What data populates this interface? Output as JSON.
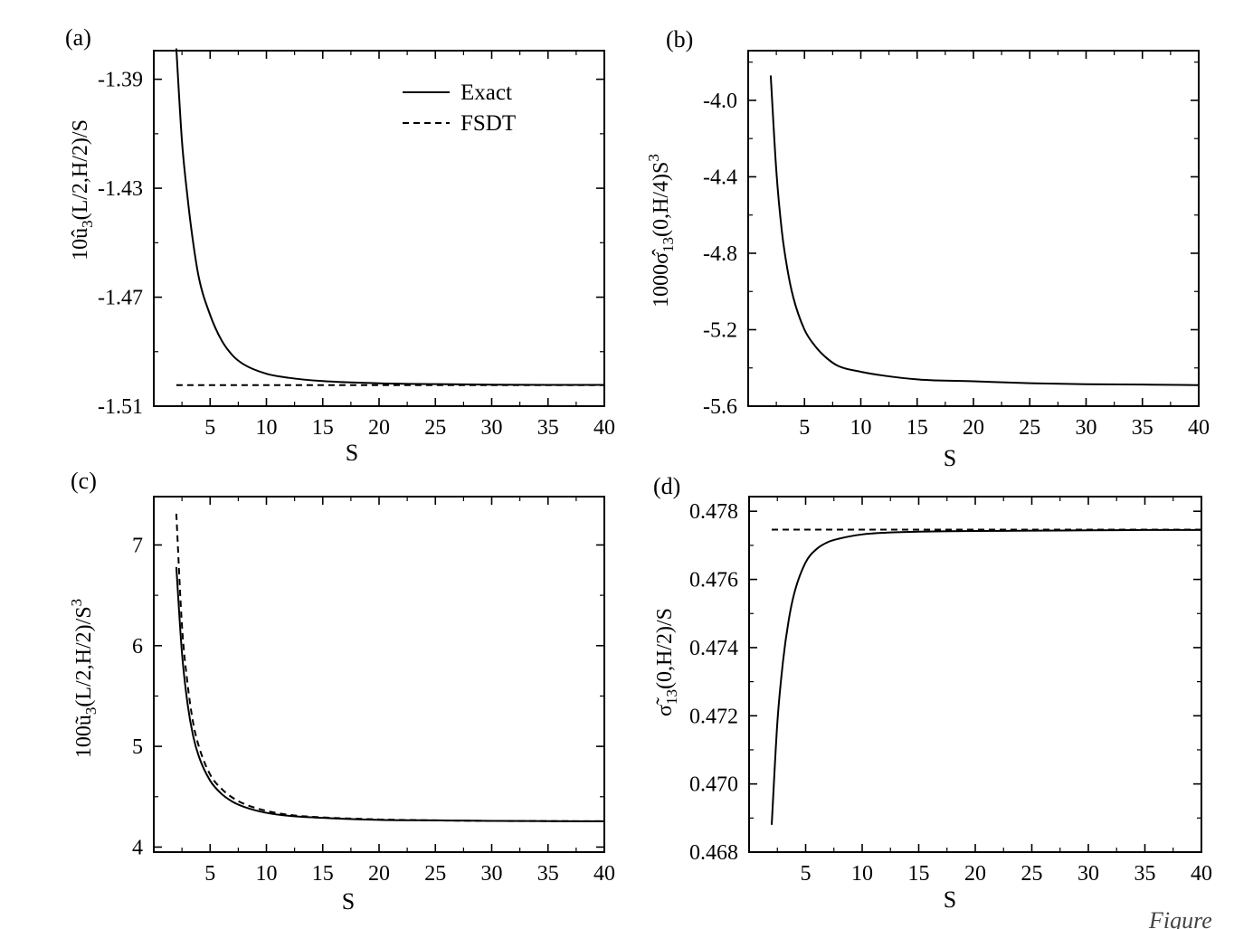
{
  "chart_data": [
    {
      "id": "a",
      "panel_label": "(a)",
      "type": "line",
      "xlabel": "S",
      "ylabel": {
        "pre": "10û",
        "sub": "3",
        "post": "(L/2,H/2)/S",
        "sup": ""
      },
      "xlim": [
        0,
        40
      ],
      "ylim": [
        -1.51,
        -1.3795
      ],
      "xticks": [
        5,
        10,
        15,
        20,
        25,
        30,
        35,
        40
      ],
      "xtick_labels": [
        "5",
        "10",
        "15",
        "20",
        "25",
        "30",
        "35",
        "40"
      ],
      "yticks": [
        -1.51,
        -1.47,
        -1.43,
        -1.39
      ],
      "ytick_labels": [
        "-1.51",
        "-1.47",
        "-1.43",
        "-1.39"
      ],
      "legend": {
        "position": "top-right",
        "entries": [
          {
            "label": "Exact",
            "style": "solid"
          },
          {
            "label": "FSDT",
            "style": "dashed"
          }
        ]
      },
      "series": [
        {
          "name": "Exact",
          "style": "solid",
          "x": [
            2,
            2.5,
            3,
            3.5,
            4,
            5,
            6,
            7,
            8,
            10,
            12,
            15,
            20,
            25,
            30,
            35,
            40
          ],
          "y": [
            -1.3787,
            -1.4127,
            -1.4335,
            -1.4501,
            -1.4628,
            -1.4765,
            -1.4857,
            -1.4914,
            -1.4947,
            -1.4981,
            -1.4996,
            -1.5008,
            -1.5016,
            -1.5019,
            -1.5021,
            -1.5022,
            -1.5022
          ]
        },
        {
          "name": "FSDT",
          "style": "dashed",
          "x": [
            2,
            40
          ],
          "y": [
            -1.5023,
            -1.5023
          ]
        }
      ]
    },
    {
      "id": "b",
      "panel_label": "(b)",
      "type": "line",
      "xlabel": "S",
      "ylabel": {
        "pre": "1000σ̂",
        "sub": "13",
        "post": "(0,H/4)S",
        "sup": "3"
      },
      "xlim": [
        0,
        40
      ],
      "ylim": [
        -5.6,
        -3.74
      ],
      "xticks": [
        5,
        10,
        15,
        20,
        25,
        30,
        35,
        40
      ],
      "xtick_labels": [
        "5",
        "10",
        "15",
        "20",
        "25",
        "30",
        "35",
        "40"
      ],
      "yticks": [
        -5.6,
        -5.2,
        -4.8,
        -4.4,
        -4.0
      ],
      "ytick_labels": [
        "-5.6",
        "-5.2",
        "-4.8",
        "-4.4",
        "-4.0"
      ],
      "series": [
        {
          "name": "",
          "style": "solid",
          "x": [
            2,
            2.5,
            3,
            3.5,
            4,
            5,
            6,
            7,
            8,
            10,
            12,
            15,
            20,
            25,
            30,
            35,
            40
          ],
          "y": [
            -3.87,
            -4.37,
            -4.69,
            -4.89,
            -5.03,
            -5.2,
            -5.29,
            -5.35,
            -5.39,
            -5.42,
            -5.44,
            -5.46,
            -5.47,
            -5.48,
            -5.485,
            -5.487,
            -5.49
          ]
        }
      ]
    },
    {
      "id": "c",
      "panel_label": "(c)",
      "type": "line",
      "xlabel": "S",
      "ylabel": {
        "pre": "100ũ",
        "sub": "3",
        "post": "(L/2,H/2)/S",
        "sup": "3"
      },
      "xlim": [
        0,
        40
      ],
      "ylim": [
        3.95,
        7.48
      ],
      "xticks": [
        5,
        10,
        15,
        20,
        25,
        30,
        35,
        40
      ],
      "xtick_labels": [
        "5",
        "10",
        "15",
        "20",
        "25",
        "30",
        "35",
        "40"
      ],
      "yticks": [
        4,
        5,
        6,
        7
      ],
      "ytick_labels": [
        "4",
        "5",
        "6",
        "7"
      ],
      "series": [
        {
          "name": "Exact",
          "style": "solid",
          "x": [
            2,
            2.5,
            3,
            3.5,
            4,
            5,
            6,
            7,
            8,
            10,
            12,
            15,
            20,
            25,
            30,
            35,
            40
          ],
          "y": [
            6.78,
            5.93,
            5.42,
            5.1,
            4.9,
            4.66,
            4.53,
            4.45,
            4.4,
            4.34,
            4.31,
            4.29,
            4.27,
            4.265,
            4.26,
            4.258,
            4.256
          ]
        },
        {
          "name": "FSDT",
          "style": "dashed",
          "x": [
            2,
            2.5,
            3,
            3.5,
            4,
            5,
            6,
            7,
            8,
            10,
            12,
            15,
            20,
            25,
            30,
            35,
            40
          ],
          "y": [
            7.31,
            6.2,
            5.62,
            5.23,
            5.0,
            4.72,
            4.58,
            4.49,
            4.43,
            4.36,
            4.32,
            4.295,
            4.275,
            4.265,
            4.26,
            4.258,
            4.256
          ]
        }
      ]
    },
    {
      "id": "d",
      "panel_label": "(d)",
      "type": "line",
      "xlabel": "S",
      "ylabel": {
        "pre": "σ̃",
        "sub": "13",
        "post": "(0,H/2)/S",
        "sup": ""
      },
      "xlim": [
        0,
        40
      ],
      "ylim": [
        0.468,
        0.47843
      ],
      "xticks": [
        5,
        10,
        15,
        20,
        25,
        30,
        35,
        40
      ],
      "xtick_labels": [
        "5",
        "10",
        "15",
        "20",
        "25",
        "30",
        "35",
        "40"
      ],
      "yticks": [
        0.468,
        0.47,
        0.472,
        0.474,
        0.476,
        0.478
      ],
      "ytick_labels": [
        "0.468",
        "0.470",
        "0.472",
        "0.474",
        "0.476",
        "0.478"
      ],
      "series": [
        {
          "name": "Exact",
          "style": "solid",
          "x": [
            2,
            2.5,
            3,
            3.5,
            4,
            5,
            6,
            7,
            8,
            10,
            12,
            15,
            20,
            25,
            30,
            35,
            40
          ],
          "y": [
            0.4688,
            0.4718,
            0.4736,
            0.4748,
            0.4756,
            0.4765,
            0.4769,
            0.4771,
            0.4772,
            0.47732,
            0.47737,
            0.4774,
            0.47742,
            0.47743,
            0.47744,
            0.47745,
            0.47745
          ]
        },
        {
          "name": "FSDT",
          "style": "dashed",
          "x": [
            2,
            40
          ],
          "y": [
            0.47746,
            0.47746
          ]
        }
      ]
    }
  ],
  "footer": {
    "caption": "Figure"
  }
}
